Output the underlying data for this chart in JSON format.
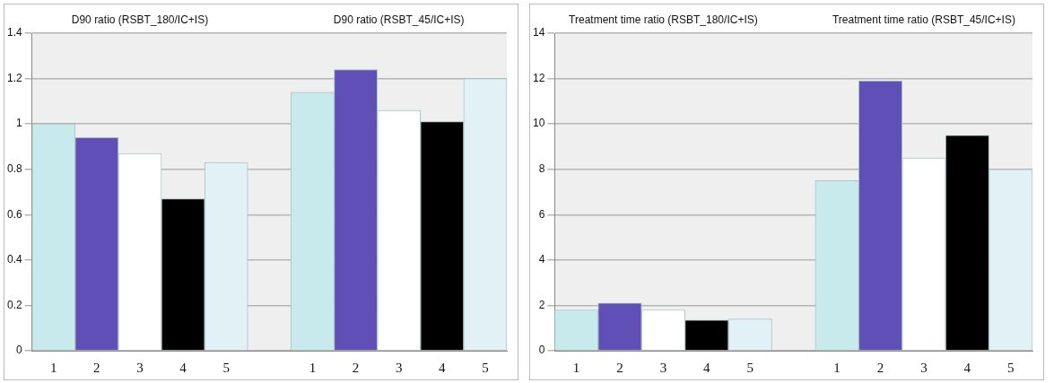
{
  "chart_data": [
    {
      "type": "bar",
      "annotations": [
        "D90 ratio (RSBT_180/IC+IS)",
        "D90 ratio (RSBT_45/IC+IS)"
      ],
      "categories": [
        "1",
        "2",
        "3",
        "4",
        "5",
        null,
        "1",
        "2",
        "3",
        "4",
        "5"
      ],
      "values": [
        1.0,
        0.94,
        0.87,
        0.67,
        0.83,
        null,
        1.14,
        1.24,
        1.06,
        1.01,
        1.2
      ],
      "colors": [
        "#c8eaec",
        "#5f4fb6",
        "#ffffff",
        "#000000",
        "#e2f1f6",
        "#ffffff",
        "#c8eaec",
        "#5f4fb6",
        "#ffffff",
        "#000000",
        "#e2f1f6"
      ],
      "ylim": [
        0,
        1.4
      ],
      "yticks": [
        0,
        0.2,
        0.4,
        0.6,
        0.8,
        1,
        1.2,
        1.4
      ],
      "grid": "y",
      "legend": false
    },
    {
      "type": "bar",
      "annotations": [
        "Treatment time ratio (RSBT_180/IC+IS)",
        "Treatment time ratio (RSBT_45/IC+IS)"
      ],
      "categories": [
        "1",
        "2",
        "3",
        "4",
        "5",
        null,
        "1",
        "2",
        "3",
        "4",
        "5"
      ],
      "values": [
        1.8,
        2.1,
        1.8,
        1.35,
        1.4,
        null,
        7.5,
        11.9,
        8.5,
        9.5,
        8.0
      ],
      "colors": [
        "#c8eaec",
        "#5f4fb6",
        "#ffffff",
        "#000000",
        "#e2f1f6",
        "#ffffff",
        "#c8eaec",
        "#5f4fb6",
        "#ffffff",
        "#000000",
        "#e2f1f6"
      ],
      "ylim": [
        0,
        14
      ],
      "yticks": [
        0,
        2,
        4,
        6,
        8,
        10,
        12,
        14
      ],
      "grid": "y",
      "legend": false
    }
  ]
}
